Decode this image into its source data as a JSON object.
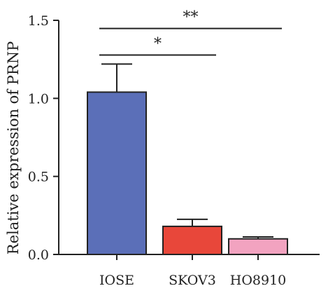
{
  "chart_data": {
    "type": "bar",
    "title": "",
    "xlabel": "",
    "ylabel": "Relative expression of PRNP",
    "ylim": [
      0,
      1.5
    ],
    "yticks": [
      0.0,
      0.5,
      1.0,
      1.5
    ],
    "ytick_labels": [
      "0.0",
      "0.5",
      "1.0",
      "1.5"
    ],
    "categories": [
      "IOSE",
      "SKOV3",
      "HO8910"
    ],
    "values": [
      1.04,
      0.18,
      0.1
    ],
    "errors": [
      0.18,
      0.045,
      0.012
    ],
    "colors": [
      "#5b6fb8",
      "#e8473a",
      "#f2a3c0"
    ],
    "significance": [
      {
        "from": 0,
        "to": 2,
        "y": 1.45,
        "label": "**"
      },
      {
        "from": 0,
        "to": 1,
        "y": 1.28,
        "label": "*"
      }
    ],
    "grid": false,
    "legend": "none"
  }
}
